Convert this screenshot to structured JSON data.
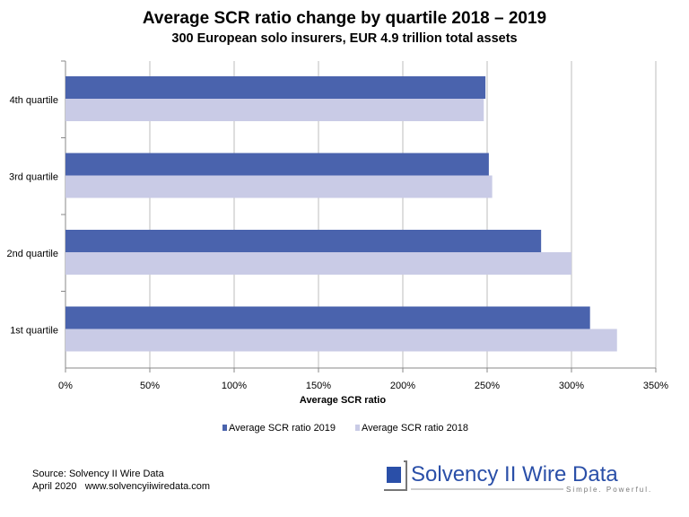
{
  "chart_data": {
    "type": "bar",
    "orientation": "horizontal",
    "title": "Average SCR ratio change by quartile 2018 – 2019",
    "subtitle": "300 European solo insurers, EUR 4.9 trillion total assets",
    "xlabel": "Average SCR ratio",
    "ylabel": "",
    "categories": [
      "4th quartile",
      "3rd quartile",
      "2nd quartile",
      "1st quartile"
    ],
    "series": [
      {
        "name": "Average SCR ratio 2019",
        "color": "#4a63ad",
        "values": [
          249,
          251,
          282,
          311
        ]
      },
      {
        "name": "Average SCR ratio 2018",
        "color": "#c9cbe6",
        "values": [
          248,
          253,
          300,
          327
        ]
      }
    ],
    "xlim": [
      0,
      350
    ],
    "xticks": [
      "0%",
      "50%",
      "100%",
      "150%",
      "200%",
      "250%",
      "300%",
      "350%"
    ],
    "grid": "vertical",
    "legend": "bottom"
  },
  "footer": {
    "source": "Source: Solvency II Wire Data",
    "date_url": "April 2020   www.solvencyiiwiredata.com"
  },
  "logo": {
    "name": "Solvency II Wire Data",
    "tagline": "Simple. Powerful."
  }
}
